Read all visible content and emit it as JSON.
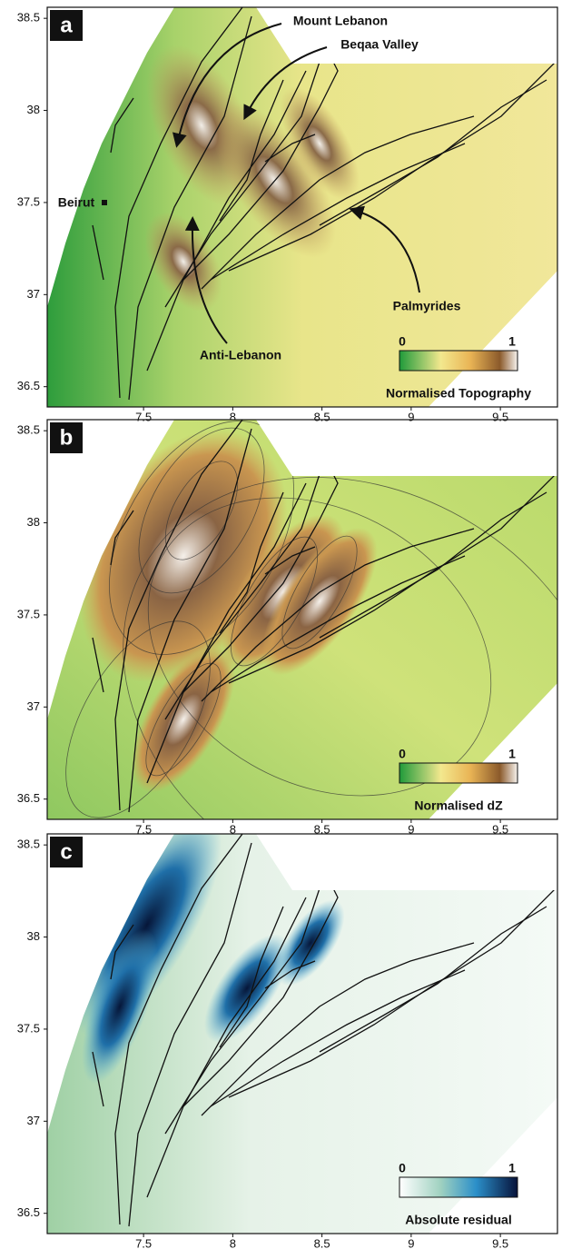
{
  "panels": [
    {
      "label": "a",
      "xlim": [
        6.96,
        9.82
      ],
      "ylim": [
        36.39,
        38.56
      ],
      "xticks": [
        7.5,
        8,
        8.5,
        9,
        9.5
      ],
      "yticks": [
        36.5,
        37,
        37.5,
        38,
        38.5
      ],
      "annotations": [
        "Mount Lebanon",
        "Beqaa Valley",
        "Beirut",
        "Palmyrides",
        "Anti-Lebanon"
      ],
      "colorbar": {
        "min": 0,
        "max": 1,
        "title": "Normalised Topography"
      }
    },
    {
      "label": "b",
      "xlim": [
        6.96,
        9.82
      ],
      "ylim": [
        36.39,
        38.56
      ],
      "xticks": [
        7.5,
        8,
        8.5,
        9,
        9.5
      ],
      "yticks": [
        36.5,
        37,
        37.5,
        38,
        38.5
      ],
      "colorbar": {
        "min": 0,
        "max": 1,
        "title": "Normalised dZ"
      }
    },
    {
      "label": "c",
      "xlim": [
        6.96,
        9.82
      ],
      "ylim": [
        36.39,
        38.56
      ],
      "xticks": [
        7.5,
        8,
        8.5,
        9,
        9.5
      ],
      "yticks": [
        36.5,
        37,
        37.5,
        38,
        38.5
      ],
      "colorbar": {
        "min": 0,
        "max": 1,
        "title": "Absolute residual"
      }
    }
  ]
}
